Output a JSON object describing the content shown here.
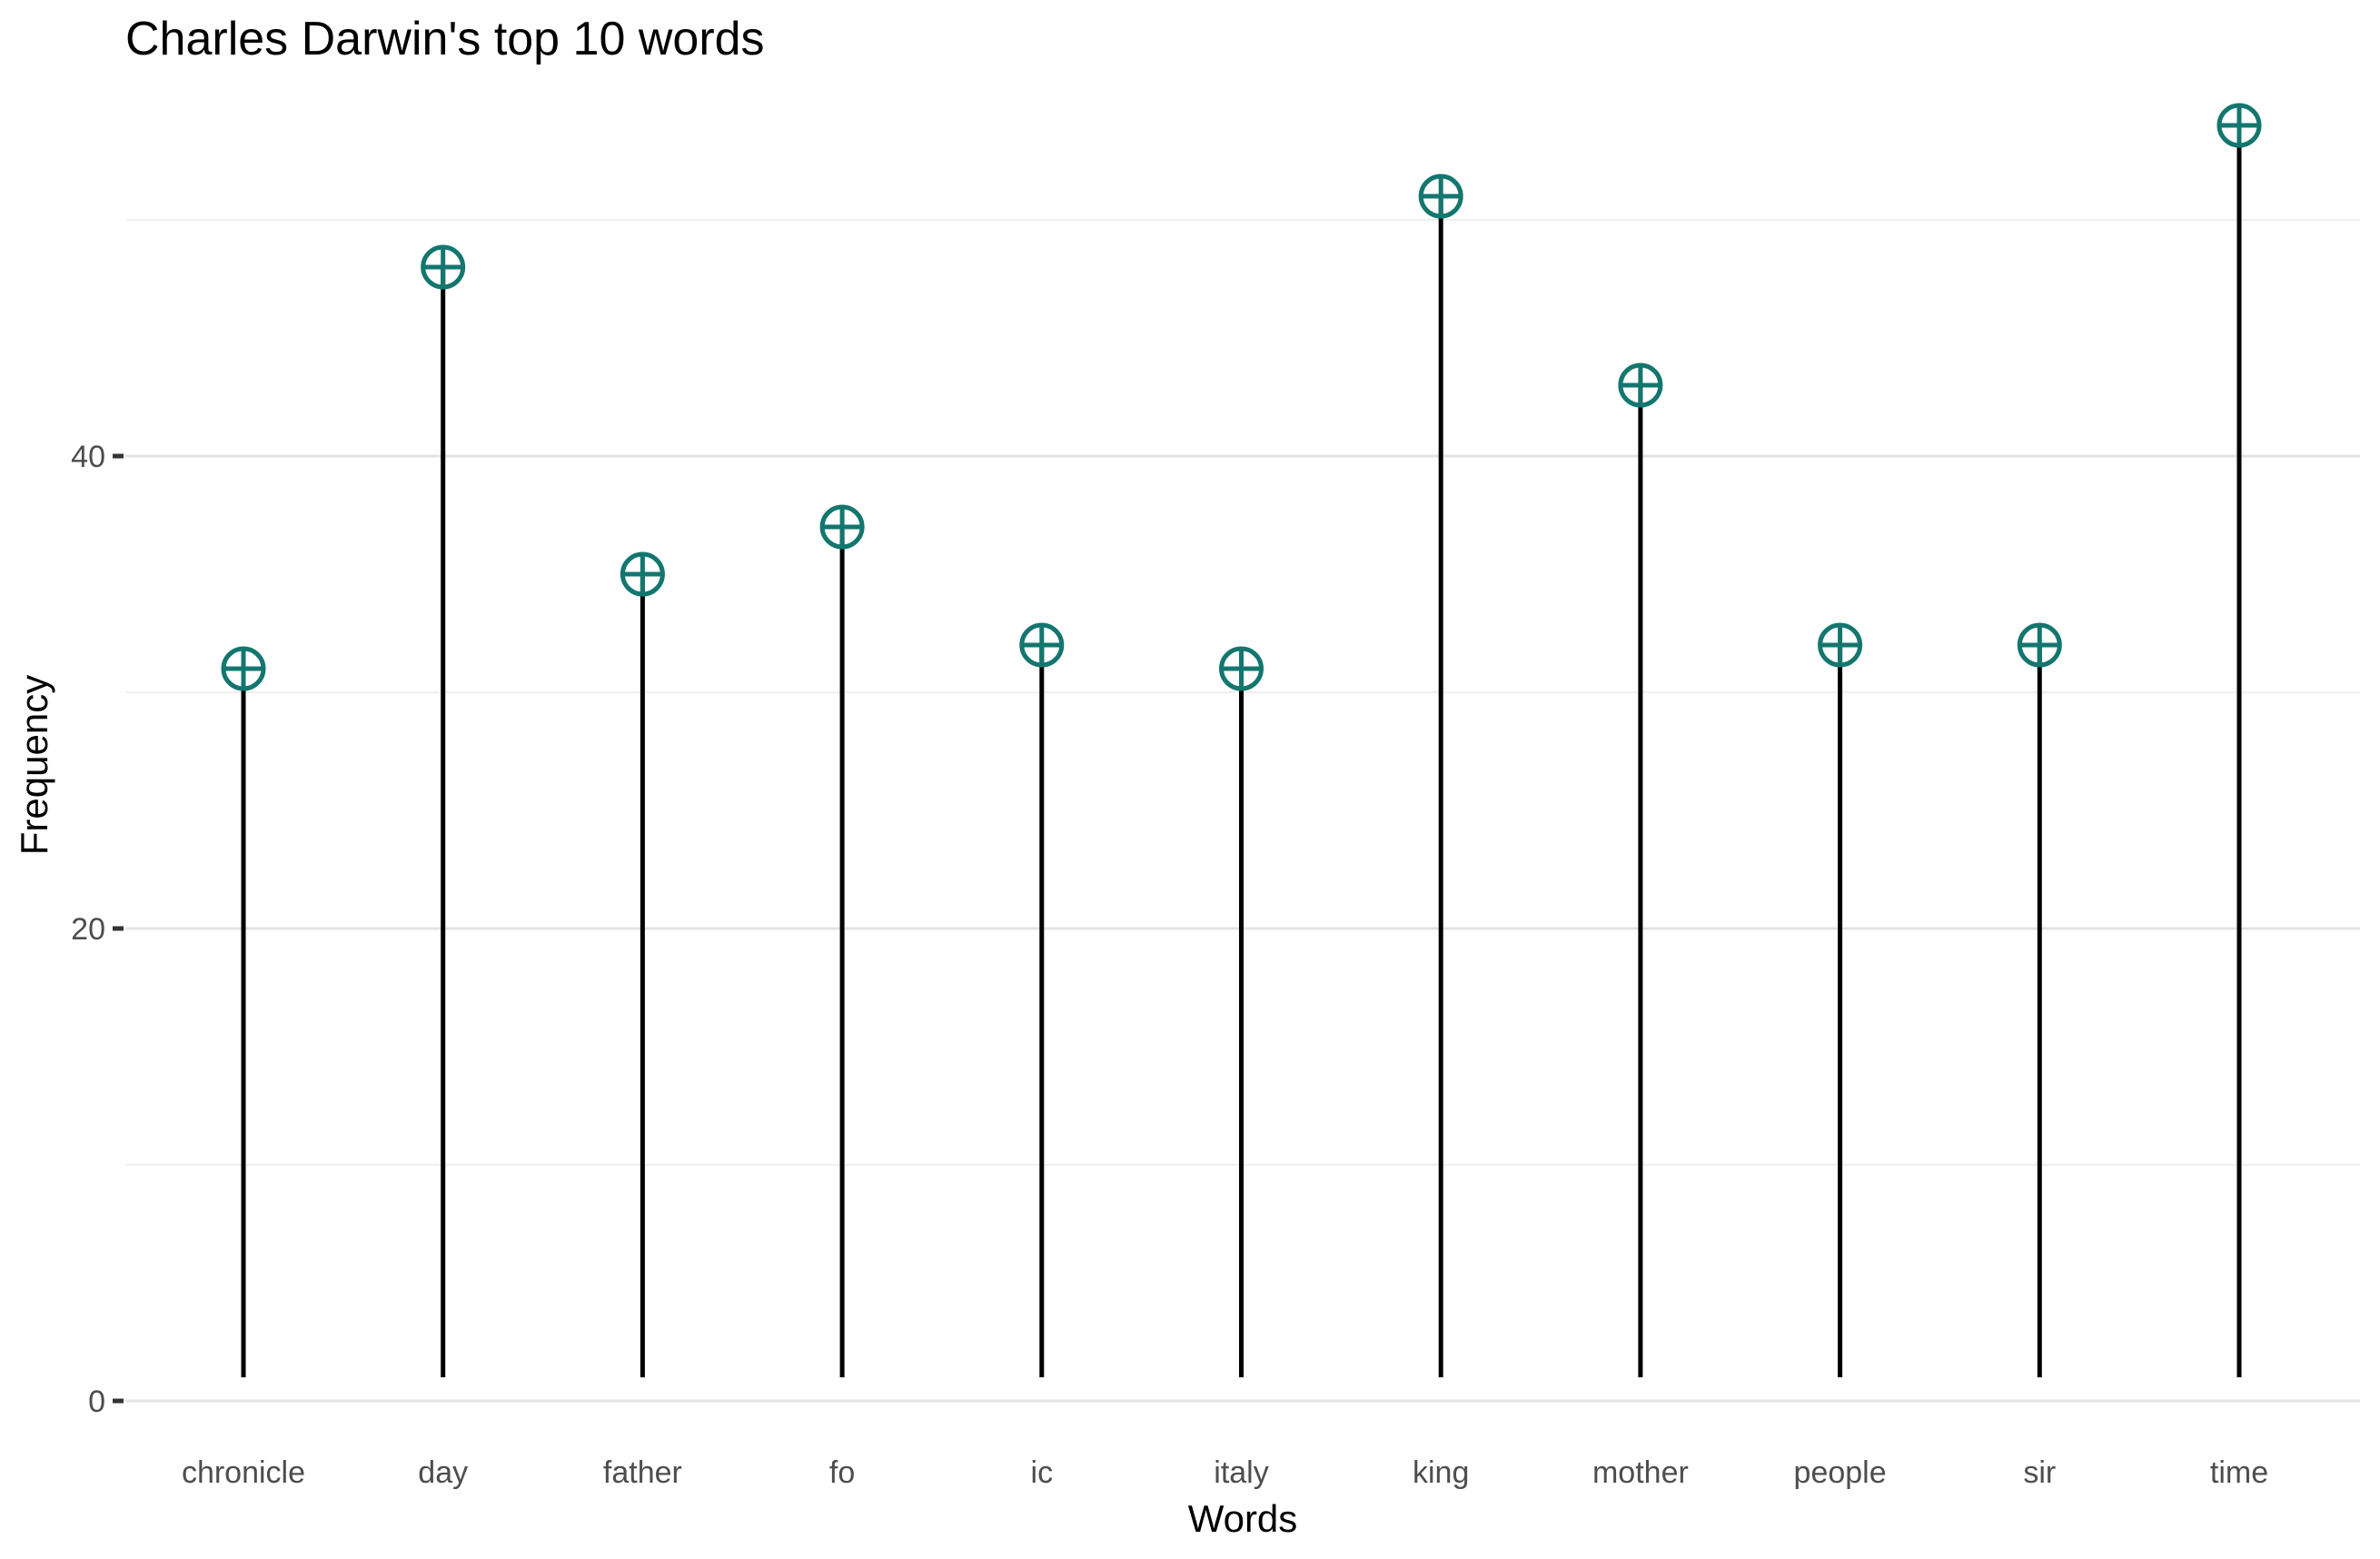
{
  "chart_data": {
    "type": "lollipop",
    "title": "Charles Darwin's top 10 words",
    "xlabel": "Words",
    "ylabel": "Frequency",
    "categories": [
      "chronicle",
      "day",
      "father",
      "fo",
      "ic",
      "italy",
      "king",
      "mother",
      "people",
      "sir",
      "time"
    ],
    "values": [
      31,
      48,
      35,
      37,
      32,
      31,
      51,
      43,
      32,
      32,
      54
    ],
    "ylim": [
      0,
      57
    ],
    "y_major_ticks": [
      0,
      20,
      40
    ],
    "y_minor_gridlines": [
      10,
      30,
      50
    ],
    "grid": true,
    "legend": "none",
    "colors": {
      "point": "#13766F",
      "stem": "#000000"
    }
  }
}
